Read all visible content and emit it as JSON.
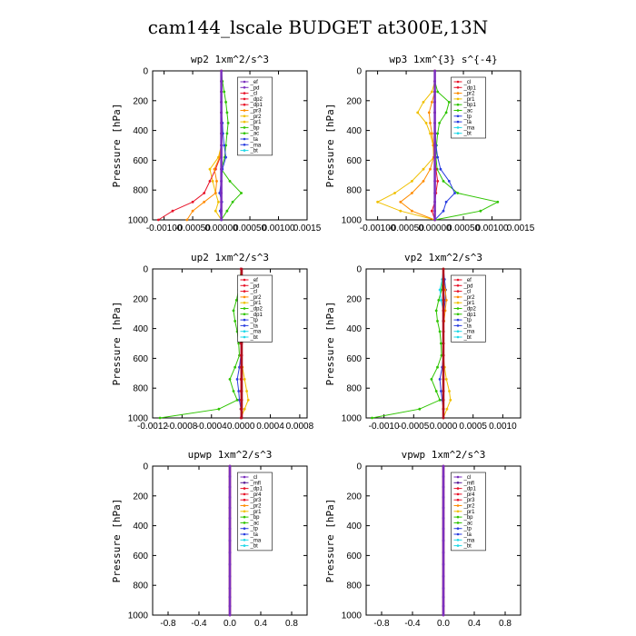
{
  "figure": {
    "title": "cam144_lscale  BUDGET at300E,13N"
  },
  "colors": {
    "purple": "#7b2fbe",
    "red": "#e8142a",
    "darkred": "#b01020",
    "orange": "#ff8c00",
    "gold": "#f0c000",
    "green": "#2ec400",
    "blue": "#2a3ee0",
    "cyan": "#20d8e8",
    "dpurple": "#5a1e9a",
    "olive": "#7a8a10"
  },
  "chart_data": [
    {
      "type": "line",
      "title": "wp2  1xm^2/s^3",
      "xlim": [
        -0.0012,
        0.0015
      ],
      "xticks": [
        -0.001,
        -0.0005,
        0.0,
        0.0005,
        0.001,
        0.0015
      ],
      "xtick_labels": [
        "-0.00100",
        "-0.00050",
        "0.00000",
        "0.00050",
        "0.00100",
        "0.0015"
      ],
      "ylim": [
        1000,
        0
      ],
      "yticks": [
        0,
        200,
        400,
        600,
        800,
        1000
      ],
      "ylabel": "Pressure [hPa]",
      "legend": [
        "_ef",
        "_pd",
        "_cl",
        "_dp2",
        "_dp1",
        "_pr3",
        "_pr2",
        "_pr1",
        "_bp",
        "_ac",
        "_ta",
        "_ma",
        "_bt"
      ],
      "legend_colors": [
        "purple",
        "purple",
        "red",
        "red",
        "red",
        "orange",
        "gold",
        "gold",
        "green",
        "green",
        "blue",
        "blue",
        "cyan"
      ],
      "series": [
        {
          "color": "green",
          "x": [
            0.0,
            2e-05,
            5e-05,
            8e-05,
            0.0001,
            0.00012,
            0.0001,
            8e-05,
            6e-05,
            0.0,
            0.00015,
            0.00035,
            0.0002,
            0.0001,
            0.0
          ]
        },
        {
          "color": "gold",
          "x": [
            0.0,
            0.0,
            0.0,
            0.0,
            0.0,
            1e-05,
            2e-05,
            0.0,
            -5e-05,
            -0.0002,
            -0.00015,
            -0.0001,
            -5e-05,
            -0.0001,
            0.0
          ]
        },
        {
          "color": "red",
          "x": [
            0.0,
            0.0,
            0.0,
            0.0,
            0.0,
            0.0,
            0.0,
            0.0,
            -2e-05,
            -0.0001,
            -0.0002,
            -0.0003,
            -0.0005,
            -0.00085,
            -0.0011
          ]
        },
        {
          "color": "blue",
          "x": [
            0.0,
            0.0,
            0.0,
            0.0,
            0.0,
            2e-05,
            3e-05,
            5e-05,
            8e-05,
            2e-05,
            0.0,
            -3e-05,
            1e-05,
            -2e-05,
            0.0
          ]
        },
        {
          "color": "orange",
          "x": [
            0.0,
            0.0,
            0.0,
            0.0,
            0.0,
            0.0,
            0.0,
            0.0,
            -3e-05,
            -0.00012,
            -8e-05,
            -0.0001,
            -0.0003,
            -0.0005,
            -0.0006
          ]
        },
        {
          "color": "purple",
          "x": [
            0.0,
            0.0,
            0.0,
            0.0,
            0.0,
            0.0,
            0.0,
            0.0,
            0.0,
            0.0,
            0.0,
            0.0,
            0.0,
            0.0,
            0.0
          ]
        }
      ]
    },
    {
      "type": "line",
      "title": "wp3  1xm^{3} s^{-4}",
      "xlim": [
        -0.0012,
        0.0015
      ],
      "xticks": [
        -0.001,
        -0.0005,
        0.0,
        0.0005,
        0.001,
        0.0015
      ],
      "xtick_labels": [
        "-0.00100",
        "-0.00050",
        "0.00000",
        "0.00050",
        "0.00100",
        "0.0015"
      ],
      "ylim": [
        1000,
        0
      ],
      "yticks": [
        0,
        200,
        400,
        600,
        800,
        1000
      ],
      "ylabel": "Pressure [hPa]",
      "legend": [
        "_cl",
        "_dp1",
        "_pr2",
        "_pr1",
        "_bp1",
        "_ac",
        "_tp",
        "_ta",
        "_ma",
        "_bt"
      ],
      "legend_colors": [
        "red",
        "red",
        "orange",
        "gold",
        "green",
        "green",
        "blue",
        "blue",
        "cyan",
        "cyan"
      ],
      "series": [
        {
          "color": "green",
          "x": [
            0.0,
            0.0,
            5e-05,
            0.00025,
            0.0002,
            8e-05,
            5e-05,
            3e-05,
            2e-05,
            4e-05,
            0.00015,
            0.0004,
            0.0011,
            0.0008,
            0.0
          ]
        },
        {
          "color": "gold",
          "x": [
            0.0,
            0.0,
            -5e-05,
            -0.0002,
            -0.0003,
            -0.00015,
            -8e-05,
            -3e-05,
            -2e-05,
            -0.0002,
            -0.0004,
            -0.0007,
            -0.001,
            -0.0006,
            0.0
          ]
        },
        {
          "color": "orange",
          "x": [
            0.0,
            0.0,
            0.0,
            -5e-05,
            -0.0001,
            -8e-05,
            -5e-05,
            -2e-05,
            -2e-05,
            -8e-05,
            -0.0002,
            -0.0004,
            -0.0006,
            -0.0004,
            0.0
          ]
        },
        {
          "color": "blue",
          "x": [
            0.0,
            0.0,
            0.0,
            0.0,
            0.0,
            0.0,
            1e-05,
            2e-05,
            5e-05,
            0.0001,
            0.00025,
            0.00035,
            0.0002,
            0.00015,
            0.0
          ]
        },
        {
          "color": "red",
          "x": [
            0.0,
            0.0,
            0.0,
            0.0,
            0.0,
            0.0,
            0.0,
            0.0,
            0.0,
            2e-05,
            5e-05,
            2e-05,
            0.0,
            -5e-05,
            0.0
          ]
        },
        {
          "color": "purple",
          "x": [
            0.0,
            0.0,
            0.0,
            0.0,
            0.0,
            0.0,
            0.0,
            0.0,
            0.0,
            0.0,
            0.0,
            0.0,
            0.0,
            0.0,
            0.0
          ]
        }
      ]
    },
    {
      "type": "line",
      "title": "up2  1xm^2/s^3",
      "xlim": [
        -0.0012,
        0.0009
      ],
      "xticks": [
        -0.0012,
        -0.0008,
        -0.0004,
        0.0,
        0.0004,
        0.0008
      ],
      "xtick_labels": [
        "-0.0012",
        "-0.0008",
        "-0.0004",
        "0.0000",
        "0.0004",
        "0.0008"
      ],
      "ylim": [
        1000,
        0
      ],
      "yticks": [
        0,
        200,
        400,
        600,
        800,
        1000
      ],
      "ylabel": "Pressure [hPa]",
      "legend": [
        "_ef",
        "_pd",
        "_cl",
        "_pr2",
        "_pr1",
        "_dp2",
        "_dp1",
        "_tp",
        "_ta",
        "_ma",
        "_bt"
      ],
      "legend_colors": [
        "red",
        "red",
        "red",
        "orange",
        "gold",
        "green",
        "green",
        "blue",
        "blue",
        "cyan",
        "cyan"
      ],
      "series": [
        {
          "color": "green",
          "x": [
            0.0,
            -1e-05,
            -3e-05,
            -6e-05,
            -0.0001,
            -8e-05,
            -5e-05,
            -3e-05,
            -2e-05,
            -8e-05,
            -0.00015,
            -0.0001,
            -5e-05,
            -0.0003,
            -0.0011
          ]
        },
        {
          "color": "gold",
          "x": [
            0.0,
            0.0,
            0.0,
            0.0,
            0.0,
            0.0,
            0.0,
            0.0,
            0.0,
            2e-05,
            5e-05,
            8e-05,
            0.0001,
            5e-05,
            0.0
          ]
        },
        {
          "color": "blue",
          "x": [
            0.0,
            2e-05,
            3e-05,
            2e-05,
            1e-05,
            0.0,
            0.0,
            0.0,
            0.0,
            -2e-05,
            -5e-05,
            -3e-05,
            -2e-05,
            0.0,
            0.0
          ]
        },
        {
          "color": "cyan",
          "x": [
            0.0,
            0.0,
            3e-05,
            5e-05,
            2e-05,
            0.0,
            0.0,
            0.0,
            0.0,
            0.0,
            0.0,
            0.0,
            0.0,
            0.0,
            0.0
          ]
        },
        {
          "color": "red",
          "x": [
            0.0,
            0.0,
            0.0,
            0.0,
            0.0,
            0.0,
            0.0,
            0.0,
            0.0,
            0.0,
            0.0,
            0.0,
            0.0,
            0.0,
            0.0
          ]
        },
        {
          "color": "darkred",
          "x": [
            1e-05,
            1e-05,
            1e-05,
            1e-05,
            1e-05,
            1e-05,
            1e-05,
            1e-05,
            1e-05,
            1e-05,
            1e-05,
            1e-05,
            1e-05,
            1e-05,
            1e-05
          ]
        }
      ]
    },
    {
      "type": "line",
      "title": "vp2  1xm^2/s^3",
      "xlim": [
        -0.0013,
        0.0013
      ],
      "xticks": [
        -0.001,
        -0.0005,
        0.0,
        0.0005,
        0.001
      ],
      "xtick_labels": [
        "-0.0010",
        "-0.0005",
        "0.0000",
        "0.0005",
        "0.0010"
      ],
      "ylim": [
        1000,
        0
      ],
      "yticks": [
        0,
        200,
        400,
        600,
        800,
        1000
      ],
      "ylabel": "Pressure [hPa]",
      "legend": [
        "_ef",
        "_pd",
        "_cl",
        "_pr2",
        "_pr1",
        "_dp2",
        "_dp1",
        "_tp",
        "_ta",
        "_ma",
        "_bt"
      ],
      "legend_colors": [
        "red",
        "red",
        "red",
        "orange",
        "gold",
        "green",
        "green",
        "blue",
        "blue",
        "cyan",
        "cyan"
      ],
      "series": [
        {
          "color": "green",
          "x": [
            0.0,
            -1e-05,
            -3e-05,
            -8e-05,
            -0.00012,
            -0.0001,
            -6e-05,
            -4e-05,
            -3e-05,
            -0.0001,
            -0.0002,
            -0.00012,
            -6e-05,
            -0.0004,
            -0.0012
          ]
        },
        {
          "color": "gold",
          "x": [
            0.0,
            0.0,
            0.0,
            0.0,
            0.0,
            0.0,
            0.0,
            0.0,
            0.0,
            2e-05,
            5e-05,
            0.0001,
            0.00012,
            6e-05,
            0.0
          ]
        },
        {
          "color": "blue",
          "x": [
            0.0,
            2e-05,
            4e-05,
            3e-05,
            1e-05,
            0.0,
            0.0,
            0.0,
            0.0,
            -2e-05,
            -6e-05,
            -4e-05,
            -2e-05,
            0.0,
            0.0
          ]
        },
        {
          "color": "cyan",
          "x": [
            0.0,
            -2e-05,
            -6e-05,
            -4e-05,
            0.0,
            0.0,
            0.0,
            0.0,
            0.0,
            0.0,
            0.0,
            0.0,
            0.0,
            0.0,
            0.0
          ]
        },
        {
          "color": "orange",
          "x": [
            0.0,
            0.0,
            3e-05,
            5e-05,
            3e-05,
            1e-05,
            0.0,
            0.0,
            0.0,
            0.0,
            0.0,
            0.0,
            0.0,
            0.0,
            0.0
          ]
        },
        {
          "color": "darkred",
          "x": [
            0.0,
            0.0,
            0.0,
            0.0,
            0.0,
            0.0,
            0.0,
            0.0,
            0.0,
            0.0,
            0.0,
            0.0,
            0.0,
            0.0,
            0.0
          ]
        }
      ]
    },
    {
      "type": "line",
      "title": "upwp  1xm^2/s^3",
      "xlim": [
        -1.0,
        1.0
      ],
      "xticks": [
        -0.8,
        -0.4,
        0.0,
        0.4,
        0.8
      ],
      "xtick_labels": [
        "-0.8",
        "-0.4",
        "0.0",
        "0.4",
        "0.8"
      ],
      "ylim": [
        1000,
        0
      ],
      "yticks": [
        0,
        200,
        400,
        600,
        800,
        1000
      ],
      "ylabel": "Pressure [hPa]",
      "legend": [
        "_cl",
        "_mfl",
        "_dp1",
        "_pr4",
        "_pr3",
        "_pr2",
        "_pr1",
        "_bp",
        "_ac",
        "_tp",
        "_ta",
        "_ma",
        "_bt"
      ],
      "legend_colors": [
        "purple",
        "dpurple",
        "red",
        "red",
        "red",
        "orange",
        "gold",
        "green",
        "green",
        "blue",
        "blue",
        "cyan",
        "cyan"
      ],
      "series": [
        {
          "color": "darkred",
          "x": [
            0.0,
            0.0,
            0.0,
            0.0,
            0.0,
            0.0,
            0.0,
            0.0,
            0.0,
            0.0,
            0.0,
            0.0,
            0.0,
            0.0,
            0.0
          ]
        },
        {
          "color": "purple",
          "x": [
            0.0,
            0.0,
            0.0,
            0.0,
            0.0,
            0.0,
            0.0,
            0.0,
            0.0,
            0.0,
            0.0,
            0.0,
            0.0,
            0.0,
            0.0
          ]
        }
      ]
    },
    {
      "type": "line",
      "title": "vpwp  1xm^2/s^3",
      "xlim": [
        -1.0,
        1.0
      ],
      "xticks": [
        -0.8,
        -0.4,
        0.0,
        0.4,
        0.8
      ],
      "xtick_labels": [
        "-0.8",
        "-0.4",
        "0.0",
        "0.4",
        "0.8"
      ],
      "ylim": [
        1000,
        0
      ],
      "yticks": [
        0,
        200,
        400,
        600,
        800,
        1000
      ],
      "ylabel": "Pressure [hPa]",
      "legend": [
        "_cl",
        "_mfl",
        "_dp1",
        "_pr4",
        "_pr3",
        "_pr2",
        "_pr1",
        "_bp",
        "_ac",
        "_tp",
        "_ta",
        "_ma",
        "_bt"
      ],
      "legend_colors": [
        "purple",
        "dpurple",
        "red",
        "red",
        "red",
        "orange",
        "gold",
        "green",
        "green",
        "blue",
        "blue",
        "cyan",
        "cyan"
      ],
      "series": [
        {
          "color": "darkred",
          "x": [
            0.0,
            0.0,
            0.0,
            0.0,
            0.0,
            0.0,
            0.0,
            0.0,
            0.0,
            0.0,
            0.0,
            0.0,
            0.0,
            0.0,
            0.0
          ]
        },
        {
          "color": "purple",
          "x": [
            0.0,
            0.0,
            0.0,
            0.0,
            0.0,
            0.0,
            0.0,
            0.0,
            0.0,
            0.0,
            0.0,
            0.0,
            0.0,
            0.0,
            0.0
          ]
        }
      ]
    }
  ],
  "pressure_levels": [
    0,
    70,
    140,
    210,
    280,
    350,
    420,
    500,
    580,
    660,
    740,
    820,
    880,
    940,
    1000
  ]
}
